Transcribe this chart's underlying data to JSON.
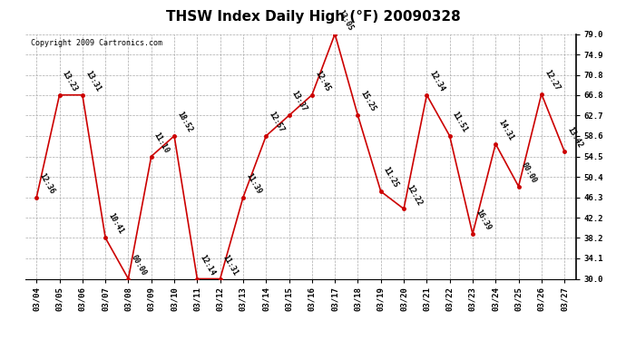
{
  "title": "THSW Index Daily High (°F) 20090328",
  "copyright": "Copyright 2009 Cartronics.com",
  "dates": [
    "03/04",
    "03/05",
    "03/06",
    "03/07",
    "03/08",
    "03/09",
    "03/10",
    "03/11",
    "03/12",
    "03/13",
    "03/14",
    "03/15",
    "03/16",
    "03/17",
    "03/18",
    "03/19",
    "03/20",
    "03/21",
    "03/22",
    "03/23",
    "03/24",
    "03/25",
    "03/26",
    "03/27"
  ],
  "values": [
    46.3,
    66.8,
    66.8,
    38.2,
    30.0,
    54.5,
    58.6,
    30.0,
    30.0,
    46.3,
    58.6,
    62.7,
    66.8,
    79.0,
    62.7,
    47.5,
    44.0,
    66.8,
    58.6,
    39.0,
    57.0,
    48.5,
    67.0,
    55.5
  ],
  "times": [
    "12:36",
    "13:23",
    "13:31",
    "10:41",
    "00:00",
    "11:10",
    "18:52",
    "12:14",
    "11:31",
    "11:39",
    "12:57",
    "13:37",
    "12:45",
    "13:05",
    "15:25",
    "11:25",
    "12:22",
    "12:34",
    "11:51",
    "16:39",
    "14:31",
    "00:00",
    "12:27",
    "13:42"
  ],
  "ylim": [
    30.0,
    79.0
  ],
  "yticks": [
    30.0,
    34.1,
    38.2,
    42.2,
    46.3,
    50.4,
    54.5,
    58.6,
    62.7,
    66.8,
    70.8,
    74.9,
    79.0
  ],
  "line_color": "#cc0000",
  "marker_color": "#cc0000",
  "bg_color": "#ffffff",
  "grid_color": "#aaaaaa",
  "title_fontsize": 11,
  "copyright_fontsize": 6,
  "label_fontsize": 6
}
